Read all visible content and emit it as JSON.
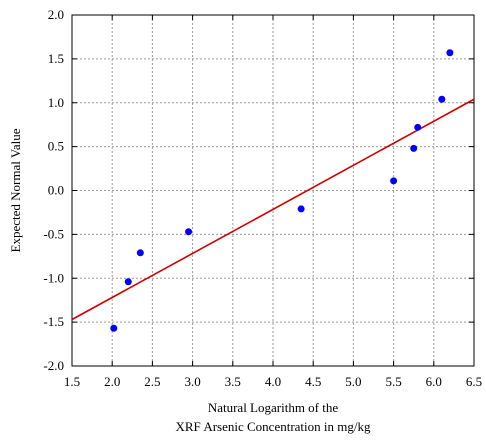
{
  "chart_data": {
    "type": "scatter",
    "xlabel": [
      "Natural Logarithm of the",
      "XRF Arsenic Concentration in mg/kg"
    ],
    "ylabel": "Expected Normal Value",
    "xlim": [
      1.5,
      6.5
    ],
    "ylim": [
      -2.0,
      2.0
    ],
    "xticks": [
      "1.5",
      "2.0",
      "2.5",
      "3.0",
      "3.5",
      "4.0",
      "4.5",
      "5.0",
      "5.5",
      "6.0",
      "6.5"
    ],
    "yticks": [
      "2.0",
      "1.5",
      "1.0",
      "0.5",
      "0.0",
      "-0.5",
      "-1.0",
      "-1.5",
      "-2.0"
    ],
    "grid": true,
    "series": [
      {
        "type": "scatter",
        "color": "#0000ff",
        "x": [
          2.02,
          2.2,
          2.35,
          2.95,
          4.35,
          5.5,
          5.75,
          5.8,
          6.1,
          6.2
        ],
        "y": [
          -1.57,
          -1.04,
          -0.71,
          -0.47,
          -0.21,
          0.11,
          0.48,
          0.72,
          1.04,
          1.57
        ]
      },
      {
        "type": "line",
        "color": "#cc0000",
        "x": [
          1.5,
          6.5
        ],
        "y": [
          -1.47,
          1.04
        ]
      }
    ]
  }
}
